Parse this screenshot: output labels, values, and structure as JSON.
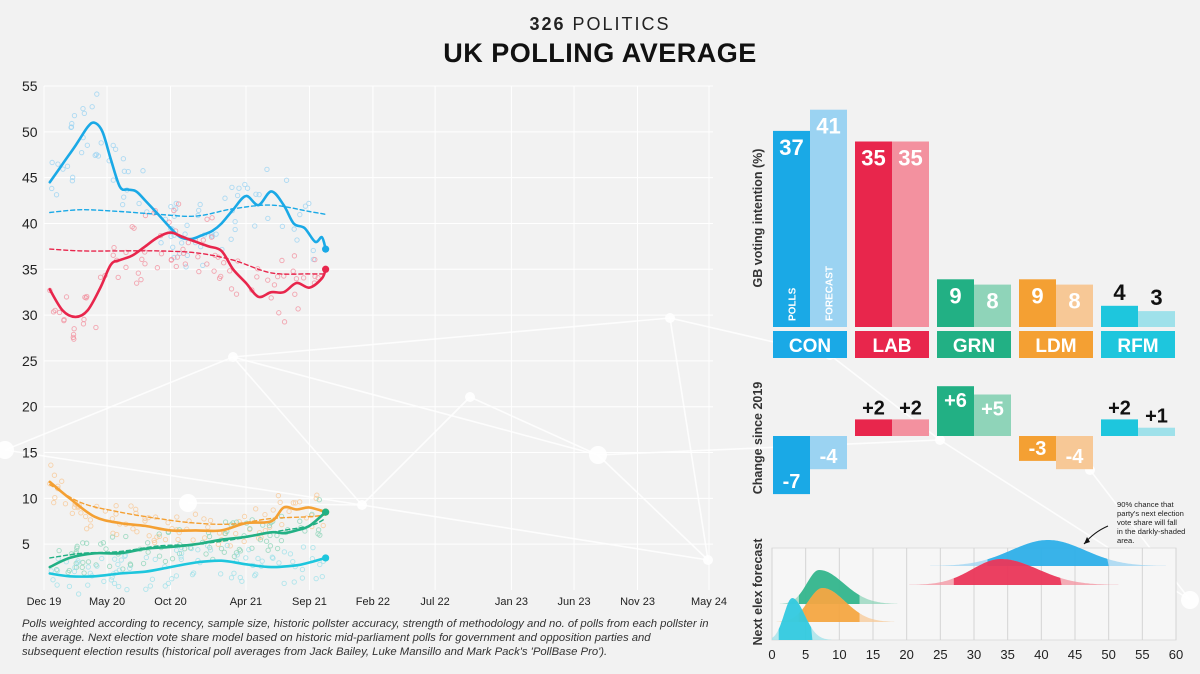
{
  "header": {
    "brand_number": "326",
    "brand_name": "POLITICS",
    "title": "UK POLLING AVERAGE"
  },
  "footnote": "Polls weighted according to recency, sample size, historic pollster accuracy, strength of methodology and no. of polls from each pollster in the average. Next election vote share model based on historic mid-parliament polls for government and opposition parties and subsequent election results (historical poll averages from Jack Bailey, Luke Mansillo and Mark Pack's 'PollBase Pro').",
  "colors": {
    "CON": "#1aa9e6",
    "CON_light": "#9bd3f2",
    "LAB": "#e8264c",
    "LAB_light": "#f3919f",
    "GRN": "#22b084",
    "GRN_light": "#8fd4b9",
    "LDM": "#f4a033",
    "LDM_light": "#f7c896",
    "RFM": "#1ec6dd",
    "RFM_light": "#9fe1ea"
  },
  "chart_data": [
    {
      "type": "line",
      "title": "",
      "xlabel": "",
      "ylabel": "",
      "x_ticks": [
        "Dec 19",
        "May 20",
        "Oct 20",
        "Apr 21",
        "Sep 21",
        "Feb 22",
        "Jul 22",
        "Jan 23",
        "Jun 23",
        "Nov 23",
        "May 24"
      ],
      "y_ticks": [
        5,
        10,
        15,
        20,
        25,
        30,
        35,
        40,
        45,
        50,
        55
      ],
      "ylim": [
        0,
        55
      ],
      "xlim": [
        "2019-12-01",
        "2024-05-01"
      ],
      "grid": true,
      "series": [
        {
          "party": "CON",
          "style": "polling-average",
          "x": [
            "2019-12-15",
            "2020-01-15",
            "2020-02-15",
            "2020-03-15",
            "2020-04-01",
            "2020-04-20",
            "2020-05-10",
            "2020-06-01",
            "2020-06-20",
            "2020-07-10",
            "2020-08-01",
            "2020-09-01",
            "2020-10-01",
            "2020-10-25",
            "2020-11-20",
            "2020-12-15",
            "2021-01-10",
            "2021-02-01",
            "2021-03-01",
            "2021-04-01",
            "2021-05-01",
            "2021-06-01",
            "2021-07-01",
            "2021-07-25",
            "2021-08-20",
            "2021-09-15",
            "2021-10-01",
            "2021-10-10"
          ],
          "y": [
            44.5,
            46.5,
            48.5,
            50.5,
            51,
            50,
            47,
            44,
            43.7,
            43.5,
            42.5,
            41,
            39.5,
            38.5,
            38.3,
            38.7,
            39.2,
            40,
            41.5,
            43,
            42,
            43.5,
            42,
            40,
            39.5,
            38,
            38.5,
            37.2
          ]
        },
        {
          "party": "CON",
          "style": "forecast",
          "x": [
            "2019-12-15",
            "2020-03-01",
            "2020-06-01",
            "2020-09-01",
            "2020-12-01",
            "2021-03-01",
            "2021-06-01",
            "2021-09-01",
            "2021-10-10"
          ],
          "y": [
            41.2,
            41.5,
            41.3,
            41,
            40.8,
            41.6,
            42,
            41.3,
            41
          ]
        },
        {
          "party": "LAB",
          "style": "polling-average",
          "x": [
            "2019-12-15",
            "2020-01-15",
            "2020-02-15",
            "2020-03-15",
            "2020-04-15",
            "2020-05-10",
            "2020-06-01",
            "2020-07-01",
            "2020-08-01",
            "2020-09-01",
            "2020-10-01",
            "2020-11-01",
            "2020-12-01",
            "2021-01-01",
            "2021-02-01",
            "2021-03-01",
            "2021-04-01",
            "2021-05-01",
            "2021-06-01",
            "2021-07-01",
            "2021-08-01",
            "2021-09-01",
            "2021-10-01",
            "2021-10-10"
          ],
          "y": [
            32.8,
            30.5,
            29.8,
            30.5,
            33,
            35.5,
            36,
            36.5,
            37.5,
            38.5,
            39,
            38.5,
            38,
            37.5,
            37,
            35,
            33.5,
            32,
            32.5,
            32.5,
            33.5,
            33,
            34,
            35
          ]
        },
        {
          "party": "LAB",
          "style": "forecast",
          "x": [
            "2019-12-15",
            "2020-03-01",
            "2020-06-01",
            "2020-09-01",
            "2020-12-01",
            "2021-03-01",
            "2021-06-01",
            "2021-09-01",
            "2021-10-10"
          ],
          "y": [
            37.2,
            37,
            37,
            37,
            36.8,
            36,
            34.6,
            34.5,
            34.5
          ]
        },
        {
          "party": "LDM",
          "style": "polling-average",
          "x": [
            "2019-12-15",
            "2020-02-01",
            "2020-04-01",
            "2020-06-01",
            "2020-08-01",
            "2020-10-01",
            "2020-12-01",
            "2021-02-01",
            "2021-04-01",
            "2021-06-01",
            "2021-07-01",
            "2021-08-01",
            "2021-09-01",
            "2021-10-10"
          ],
          "y": [
            11.8,
            10,
            8,
            7.3,
            7,
            6.5,
            6.5,
            6.5,
            7.3,
            7.5,
            9,
            8.8,
            9,
            8.5
          ]
        },
        {
          "party": "LDM",
          "style": "forecast",
          "x": [
            "2019-12-15",
            "2020-03-01",
            "2020-06-01",
            "2020-09-01",
            "2020-12-01",
            "2021-03-01",
            "2021-06-01",
            "2021-09-01",
            "2021-10-10"
          ],
          "y": [
            11.5,
            9.5,
            8.5,
            7.8,
            7.3,
            7.2,
            7.8,
            8,
            8.2
          ]
        },
        {
          "party": "GRN",
          "style": "polling-average",
          "x": [
            "2019-12-15",
            "2020-02-01",
            "2020-04-01",
            "2020-06-01",
            "2020-08-01",
            "2020-10-01",
            "2020-12-01",
            "2021-02-01",
            "2021-04-01",
            "2021-06-01",
            "2021-07-01",
            "2021-08-01",
            "2021-09-01",
            "2021-10-10"
          ],
          "y": [
            2.5,
            3.5,
            4,
            4,
            4.5,
            4.7,
            5,
            5.5,
            5.8,
            6.3,
            6.2,
            6.5,
            7,
            8.5
          ]
        },
        {
          "party": "GRN",
          "style": "forecast",
          "x": [
            "2019-12-15",
            "2020-03-01",
            "2020-06-01",
            "2020-09-01",
            "2020-12-01",
            "2021-03-01",
            "2021-06-01",
            "2021-09-01",
            "2021-10-10"
          ],
          "y": [
            3.5,
            4,
            4.2,
            4.8,
            5,
            5.5,
            6.3,
            7,
            7.8
          ]
        },
        {
          "party": "RFM",
          "style": "polling-average",
          "x": [
            "2019-12-15",
            "2020-02-01",
            "2020-04-01",
            "2020-06-01",
            "2020-08-01",
            "2020-10-01",
            "2020-12-01",
            "2021-02-01",
            "2021-04-01",
            "2021-06-01",
            "2021-08-01",
            "2021-09-01",
            "2021-10-10"
          ],
          "y": [
            1.8,
            1.5,
            1.5,
            1.8,
            2,
            2.5,
            3,
            3.2,
            2.8,
            2.5,
            2.7,
            3,
            3.5
          ]
        }
      ]
    },
    {
      "type": "bar",
      "ylabel": "GB voting intention (%)",
      "categories": [
        "CON",
        "LAB",
        "GRN",
        "LDM",
        "RFM"
      ],
      "series": [
        {
          "name": "POLLS",
          "values": [
            37,
            35,
            9,
            9,
            4
          ]
        },
        {
          "name": "FORECAST",
          "values": [
            41,
            35,
            8,
            8,
            3
          ]
        }
      ]
    },
    {
      "type": "bar",
      "ylabel": "Change since 2019",
      "categories": [
        "CON",
        "LAB",
        "GRN",
        "LDM",
        "RFM"
      ],
      "series": [
        {
          "values": [
            -7,
            2,
            6,
            -3,
            2
          ],
          "labels": [
            "-7",
            "+2",
            "+6",
            "-3",
            "+2"
          ]
        },
        {
          "values": [
            -4,
            2,
            5,
            -4,
            1
          ],
          "labels": [
            "-4",
            "+2",
            "+5",
            "-4",
            "+1"
          ]
        }
      ]
    },
    {
      "type": "area",
      "ylabel": "Next elex forecast",
      "x_ticks": [
        0,
        5,
        10,
        15,
        20,
        25,
        30,
        35,
        40,
        45,
        50,
        55,
        60
      ],
      "xlim": [
        0,
        60
      ],
      "annotation": "90% chance that party's next election vote share will fall in the darkly-shaded area.",
      "distributions": [
        {
          "party": "CON",
          "mode": 41,
          "low90": 32,
          "high90": 50
        },
        {
          "party": "LAB",
          "mode": 34,
          "low90": 27,
          "high90": 43
        },
        {
          "party": "GRN",
          "mode": 7,
          "low90": 4,
          "high90": 13
        },
        {
          "party": "LDM",
          "mode": 7.5,
          "low90": 4,
          "high90": 13
        },
        {
          "party": "RFM",
          "mode": 3,
          "low90": 1,
          "high90": 6
        }
      ]
    }
  ]
}
